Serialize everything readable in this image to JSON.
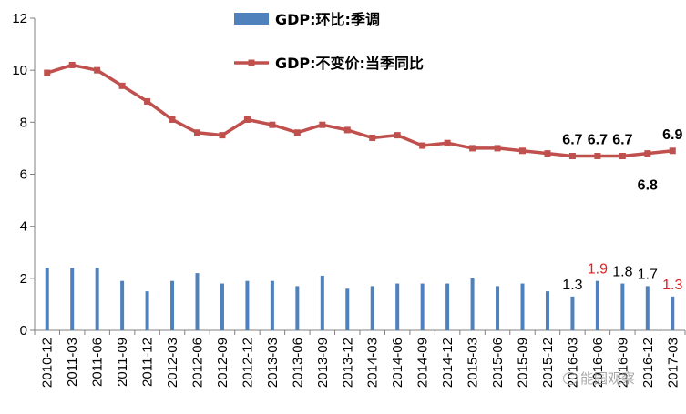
{
  "chart_data": {
    "type": "bar",
    "title": "",
    "xlabel": "",
    "ylabel": "",
    "ylim": [
      0,
      12
    ],
    "y_ticks": [
      0,
      2,
      4,
      6,
      8,
      10,
      12
    ],
    "grid": false,
    "legend_placement": "top-center",
    "categories": [
      "2010-12",
      "2011-03",
      "2011-06",
      "2011-09",
      "2011-12",
      "2012-03",
      "2012-06",
      "2012-09",
      "2012-12",
      "2013-03",
      "2013-06",
      "2013-09",
      "2013-12",
      "2014-03",
      "2014-06",
      "2014-09",
      "2014-12",
      "2015-03",
      "2015-06",
      "2015-09",
      "2015-12",
      "2016-03",
      "2016-06",
      "2016-09",
      "2016-12",
      "2017-03"
    ],
    "series": [
      {
        "name": "GDP:环比:季调",
        "type": "bar",
        "color": "#4f81bd",
        "values": [
          2.4,
          2.4,
          2.4,
          1.9,
          1.5,
          1.9,
          2.2,
          1.8,
          1.9,
          1.9,
          1.7,
          2.1,
          1.6,
          1.7,
          1.8,
          1.8,
          1.8,
          2.0,
          1.7,
          1.8,
          1.5,
          1.3,
          1.9,
          1.8,
          1.7,
          1.3
        ]
      },
      {
        "name": "GDP:不变价:当季同比",
        "type": "line",
        "color": "#c0504d",
        "marker": "square",
        "values": [
          9.9,
          10.2,
          10.0,
          9.4,
          8.8,
          8.1,
          7.6,
          7.5,
          8.1,
          7.9,
          7.6,
          7.9,
          7.7,
          7.4,
          7.5,
          7.1,
          7.2,
          7.0,
          7.0,
          6.9,
          6.8,
          6.7,
          6.7,
          6.7,
          6.8,
          6.9
        ]
      }
    ],
    "line_labels": [
      {
        "index": 21,
        "text": "6.7",
        "position": "above"
      },
      {
        "index": 22,
        "text": "6.7",
        "position": "above"
      },
      {
        "index": 23,
        "text": "6.7",
        "position": "above"
      },
      {
        "index": 24,
        "text": "6.8",
        "position": "below"
      },
      {
        "index": 25,
        "text": "6.9",
        "position": "above"
      }
    ],
    "bar_labels": [
      {
        "index": 21,
        "text": "1.3",
        "highlight": false
      },
      {
        "index": 22,
        "text": "1.9",
        "highlight": true
      },
      {
        "index": 23,
        "text": "1.8",
        "highlight": false
      },
      {
        "index": 24,
        "text": "1.7",
        "highlight": false
      },
      {
        "index": 25,
        "text": "1.3",
        "highlight": true
      }
    ],
    "highlight_color": "#e02020"
  },
  "watermark": {
    "text": "能园观察"
  }
}
